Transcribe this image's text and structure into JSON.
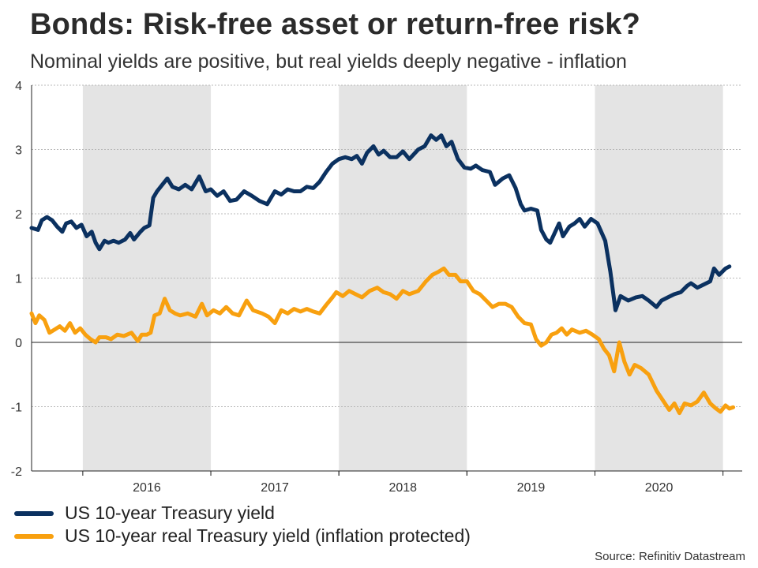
{
  "header": {
    "title": "Bonds: Risk-free asset or return-free risk?",
    "subtitle": "Nominal yields are positive, but real yields deeply negative - inflation"
  },
  "source": "Source: Refinitiv Datastream",
  "colors": {
    "nominal": "#0b3160",
    "real": "#f8a00f",
    "shade": "#e4e4e4",
    "grid": "#b8b8b8"
  },
  "chart_data": {
    "type": "line",
    "title": "Bonds: Risk-free asset or return-free risk?",
    "xlabel": "",
    "ylabel": "",
    "ylim": [
      -2,
      4
    ],
    "xlim": [
      2015.6,
      2021.15
    ],
    "yticks": [
      -2,
      -1,
      0,
      1,
      2,
      3,
      4
    ],
    "years": [
      "2016",
      "2017",
      "2018",
      "2019",
      "2020"
    ],
    "shaded_years": [
      "2016",
      "2018",
      "2020"
    ],
    "grid": true,
    "legend_position": "bottom-left",
    "series": [
      {
        "name": "US 10-year Treasury yield",
        "color": "#0b3160",
        "points": [
          [
            2015.6,
            1.78
          ],
          [
            2015.65,
            1.75
          ],
          [
            2015.68,
            1.9
          ],
          [
            2015.72,
            1.95
          ],
          [
            2015.76,
            1.9
          ],
          [
            2015.8,
            1.8
          ],
          [
            2015.84,
            1.72
          ],
          [
            2015.87,
            1.85
          ],
          [
            2015.91,
            1.88
          ],
          [
            2015.95,
            1.78
          ],
          [
            2015.99,
            1.83
          ],
          [
            2016.03,
            1.65
          ],
          [
            2016.07,
            1.72
          ],
          [
            2016.1,
            1.55
          ],
          [
            2016.13,
            1.45
          ],
          [
            2016.17,
            1.58
          ],
          [
            2016.2,
            1.55
          ],
          [
            2016.24,
            1.58
          ],
          [
            2016.28,
            1.55
          ],
          [
            2016.33,
            1.6
          ],
          [
            2016.37,
            1.7
          ],
          [
            2016.4,
            1.6
          ],
          [
            2016.45,
            1.72
          ],
          [
            2016.48,
            1.78
          ],
          [
            2016.52,
            1.82
          ],
          [
            2016.55,
            2.25
          ],
          [
            2016.58,
            2.35
          ],
          [
            2016.62,
            2.45
          ],
          [
            2016.66,
            2.55
          ],
          [
            2016.7,
            2.42
          ],
          [
            2016.75,
            2.38
          ],
          [
            2016.8,
            2.45
          ],
          [
            2016.85,
            2.38
          ],
          [
            2016.91,
            2.58
          ],
          [
            2016.96,
            2.35
          ],
          [
            2017.0,
            2.38
          ],
          [
            2017.05,
            2.28
          ],
          [
            2017.1,
            2.35
          ],
          [
            2017.15,
            2.2
          ],
          [
            2017.2,
            2.22
          ],
          [
            2017.26,
            2.35
          ],
          [
            2017.32,
            2.28
          ],
          [
            2017.38,
            2.2
          ],
          [
            2017.44,
            2.15
          ],
          [
            2017.5,
            2.35
          ],
          [
            2017.55,
            2.3
          ],
          [
            2017.6,
            2.38
          ],
          [
            2017.65,
            2.35
          ],
          [
            2017.7,
            2.35
          ],
          [
            2017.75,
            2.42
          ],
          [
            2017.8,
            2.4
          ],
          [
            2017.85,
            2.5
          ],
          [
            2017.9,
            2.65
          ],
          [
            2017.95,
            2.78
          ],
          [
            2018.0,
            2.85
          ],
          [
            2018.05,
            2.88
          ],
          [
            2018.1,
            2.85
          ],
          [
            2018.14,
            2.9
          ],
          [
            2018.18,
            2.78
          ],
          [
            2018.22,
            2.95
          ],
          [
            2018.27,
            3.05
          ],
          [
            2018.31,
            2.92
          ],
          [
            2018.35,
            2.98
          ],
          [
            2018.4,
            2.88
          ],
          [
            2018.45,
            2.88
          ],
          [
            2018.5,
            2.97
          ],
          [
            2018.55,
            2.85
          ],
          [
            2018.62,
            3.0
          ],
          [
            2018.67,
            3.05
          ],
          [
            2018.72,
            3.22
          ],
          [
            2018.76,
            3.15
          ],
          [
            2018.8,
            3.22
          ],
          [
            2018.84,
            3.05
          ],
          [
            2018.88,
            3.12
          ],
          [
            2018.93,
            2.85
          ],
          [
            2018.98,
            2.72
          ],
          [
            2019.03,
            2.7
          ],
          [
            2019.07,
            2.75
          ],
          [
            2019.12,
            2.68
          ],
          [
            2019.18,
            2.65
          ],
          [
            2019.22,
            2.45
          ],
          [
            2019.28,
            2.55
          ],
          [
            2019.33,
            2.6
          ],
          [
            2019.38,
            2.4
          ],
          [
            2019.42,
            2.15
          ],
          [
            2019.45,
            2.05
          ],
          [
            2019.5,
            2.08
          ],
          [
            2019.55,
            2.05
          ],
          [
            2019.58,
            1.75
          ],
          [
            2019.62,
            1.6
          ],
          [
            2019.65,
            1.55
          ],
          [
            2019.69,
            1.72
          ],
          [
            2019.72,
            1.85
          ],
          [
            2019.75,
            1.65
          ],
          [
            2019.8,
            1.8
          ],
          [
            2019.84,
            1.85
          ],
          [
            2019.88,
            1.92
          ],
          [
            2019.92,
            1.8
          ],
          [
            2019.97,
            1.92
          ],
          [
            2020.02,
            1.85
          ],
          [
            2020.08,
            1.58
          ],
          [
            2020.12,
            1.1
          ],
          [
            2020.16,
            0.5
          ],
          [
            2020.2,
            0.72
          ],
          [
            2020.26,
            0.65
          ],
          [
            2020.32,
            0.7
          ],
          [
            2020.37,
            0.72
          ],
          [
            2020.42,
            0.65
          ],
          [
            2020.48,
            0.55
          ],
          [
            2020.52,
            0.65
          ],
          [
            2020.57,
            0.7
          ],
          [
            2020.62,
            0.75
          ],
          [
            2020.67,
            0.78
          ],
          [
            2020.72,
            0.88
          ],
          [
            2020.75,
            0.92
          ],
          [
            2020.8,
            0.85
          ],
          [
            2020.85,
            0.9
          ],
          [
            2020.9,
            0.95
          ],
          [
            2020.93,
            1.15
          ],
          [
            2020.97,
            1.05
          ],
          [
            2021.02,
            1.15
          ],
          [
            2021.05,
            1.18
          ]
        ]
      },
      {
        "name": "US 10-year real Treasury yield (inflation protected)",
        "color": "#f8a00f",
        "points": [
          [
            2015.6,
            0.45
          ],
          [
            2015.63,
            0.3
          ],
          [
            2015.66,
            0.42
          ],
          [
            2015.7,
            0.35
          ],
          [
            2015.74,
            0.15
          ],
          [
            2015.78,
            0.2
          ],
          [
            2015.82,
            0.25
          ],
          [
            2015.86,
            0.18
          ],
          [
            2015.9,
            0.3
          ],
          [
            2015.94,
            0.15
          ],
          [
            2015.98,
            0.22
          ],
          [
            2016.02,
            0.12
          ],
          [
            2016.06,
            0.05
          ],
          [
            2016.1,
            0.0
          ],
          [
            2016.13,
            0.08
          ],
          [
            2016.18,
            0.08
          ],
          [
            2016.22,
            0.05
          ],
          [
            2016.27,
            0.12
          ],
          [
            2016.32,
            0.1
          ],
          [
            2016.38,
            0.15
          ],
          [
            2016.43,
            0.02
          ],
          [
            2016.46,
            0.12
          ],
          [
            2016.5,
            0.12
          ],
          [
            2016.53,
            0.15
          ],
          [
            2016.56,
            0.42
          ],
          [
            2016.6,
            0.45
          ],
          [
            2016.64,
            0.68
          ],
          [
            2016.68,
            0.5
          ],
          [
            2016.72,
            0.45
          ],
          [
            2016.76,
            0.42
          ],
          [
            2016.82,
            0.45
          ],
          [
            2016.88,
            0.4
          ],
          [
            2016.93,
            0.6
          ],
          [
            2016.97,
            0.42
          ],
          [
            2017.02,
            0.5
          ],
          [
            2017.07,
            0.45
          ],
          [
            2017.12,
            0.55
          ],
          [
            2017.17,
            0.45
          ],
          [
            2017.22,
            0.42
          ],
          [
            2017.28,
            0.65
          ],
          [
            2017.33,
            0.5
          ],
          [
            2017.4,
            0.45
          ],
          [
            2017.45,
            0.4
          ],
          [
            2017.5,
            0.3
          ],
          [
            2017.55,
            0.5
          ],
          [
            2017.6,
            0.45
          ],
          [
            2017.65,
            0.52
          ],
          [
            2017.7,
            0.48
          ],
          [
            2017.75,
            0.52
          ],
          [
            2017.8,
            0.48
          ],
          [
            2017.85,
            0.45
          ],
          [
            2017.9,
            0.58
          ],
          [
            2017.95,
            0.7
          ],
          [
            2017.98,
            0.78
          ],
          [
            2018.03,
            0.72
          ],
          [
            2018.08,
            0.8
          ],
          [
            2018.13,
            0.75
          ],
          [
            2018.18,
            0.7
          ],
          [
            2018.24,
            0.8
          ],
          [
            2018.3,
            0.85
          ],
          [
            2018.35,
            0.78
          ],
          [
            2018.4,
            0.75
          ],
          [
            2018.45,
            0.68
          ],
          [
            2018.5,
            0.8
          ],
          [
            2018.55,
            0.75
          ],
          [
            2018.62,
            0.8
          ],
          [
            2018.68,
            0.95
          ],
          [
            2018.73,
            1.05
          ],
          [
            2018.78,
            1.1
          ],
          [
            2018.82,
            1.15
          ],
          [
            2018.86,
            1.05
          ],
          [
            2018.91,
            1.05
          ],
          [
            2018.95,
            0.95
          ],
          [
            2019.0,
            0.95
          ],
          [
            2019.05,
            0.8
          ],
          [
            2019.1,
            0.75
          ],
          [
            2019.15,
            0.65
          ],
          [
            2019.2,
            0.55
          ],
          [
            2019.25,
            0.6
          ],
          [
            2019.3,
            0.6
          ],
          [
            2019.35,
            0.55
          ],
          [
            2019.4,
            0.4
          ],
          [
            2019.45,
            0.3
          ],
          [
            2019.5,
            0.28
          ],
          [
            2019.54,
            0.05
          ],
          [
            2019.58,
            -0.05
          ],
          [
            2019.62,
            0.0
          ],
          [
            2019.66,
            0.12
          ],
          [
            2019.7,
            0.15
          ],
          [
            2019.74,
            0.22
          ],
          [
            2019.78,
            0.12
          ],
          [
            2019.82,
            0.2
          ],
          [
            2019.88,
            0.15
          ],
          [
            2019.93,
            0.18
          ],
          [
            2019.98,
            0.12
          ],
          [
            2020.03,
            0.05
          ],
          [
            2020.07,
            -0.1
          ],
          [
            2020.11,
            -0.2
          ],
          [
            2020.15,
            -0.45
          ],
          [
            2020.19,
            0.0
          ],
          [
            2020.23,
            -0.3
          ],
          [
            2020.27,
            -0.5
          ],
          [
            2020.31,
            -0.35
          ],
          [
            2020.36,
            -0.4
          ],
          [
            2020.42,
            -0.5
          ],
          [
            2020.48,
            -0.75
          ],
          [
            2020.53,
            -0.9
          ],
          [
            2020.58,
            -1.05
          ],
          [
            2020.62,
            -0.95
          ],
          [
            2020.66,
            -1.1
          ],
          [
            2020.7,
            -0.95
          ],
          [
            2020.75,
            -0.98
          ],
          [
            2020.8,
            -0.92
          ],
          [
            2020.85,
            -0.78
          ],
          [
            2020.9,
            -0.95
          ],
          [
            2020.94,
            -1.02
          ],
          [
            2020.98,
            -1.08
          ],
          [
            2021.02,
            -0.98
          ],
          [
            2021.05,
            -1.03
          ],
          [
            2021.08,
            -1.01
          ]
        ]
      }
    ]
  }
}
